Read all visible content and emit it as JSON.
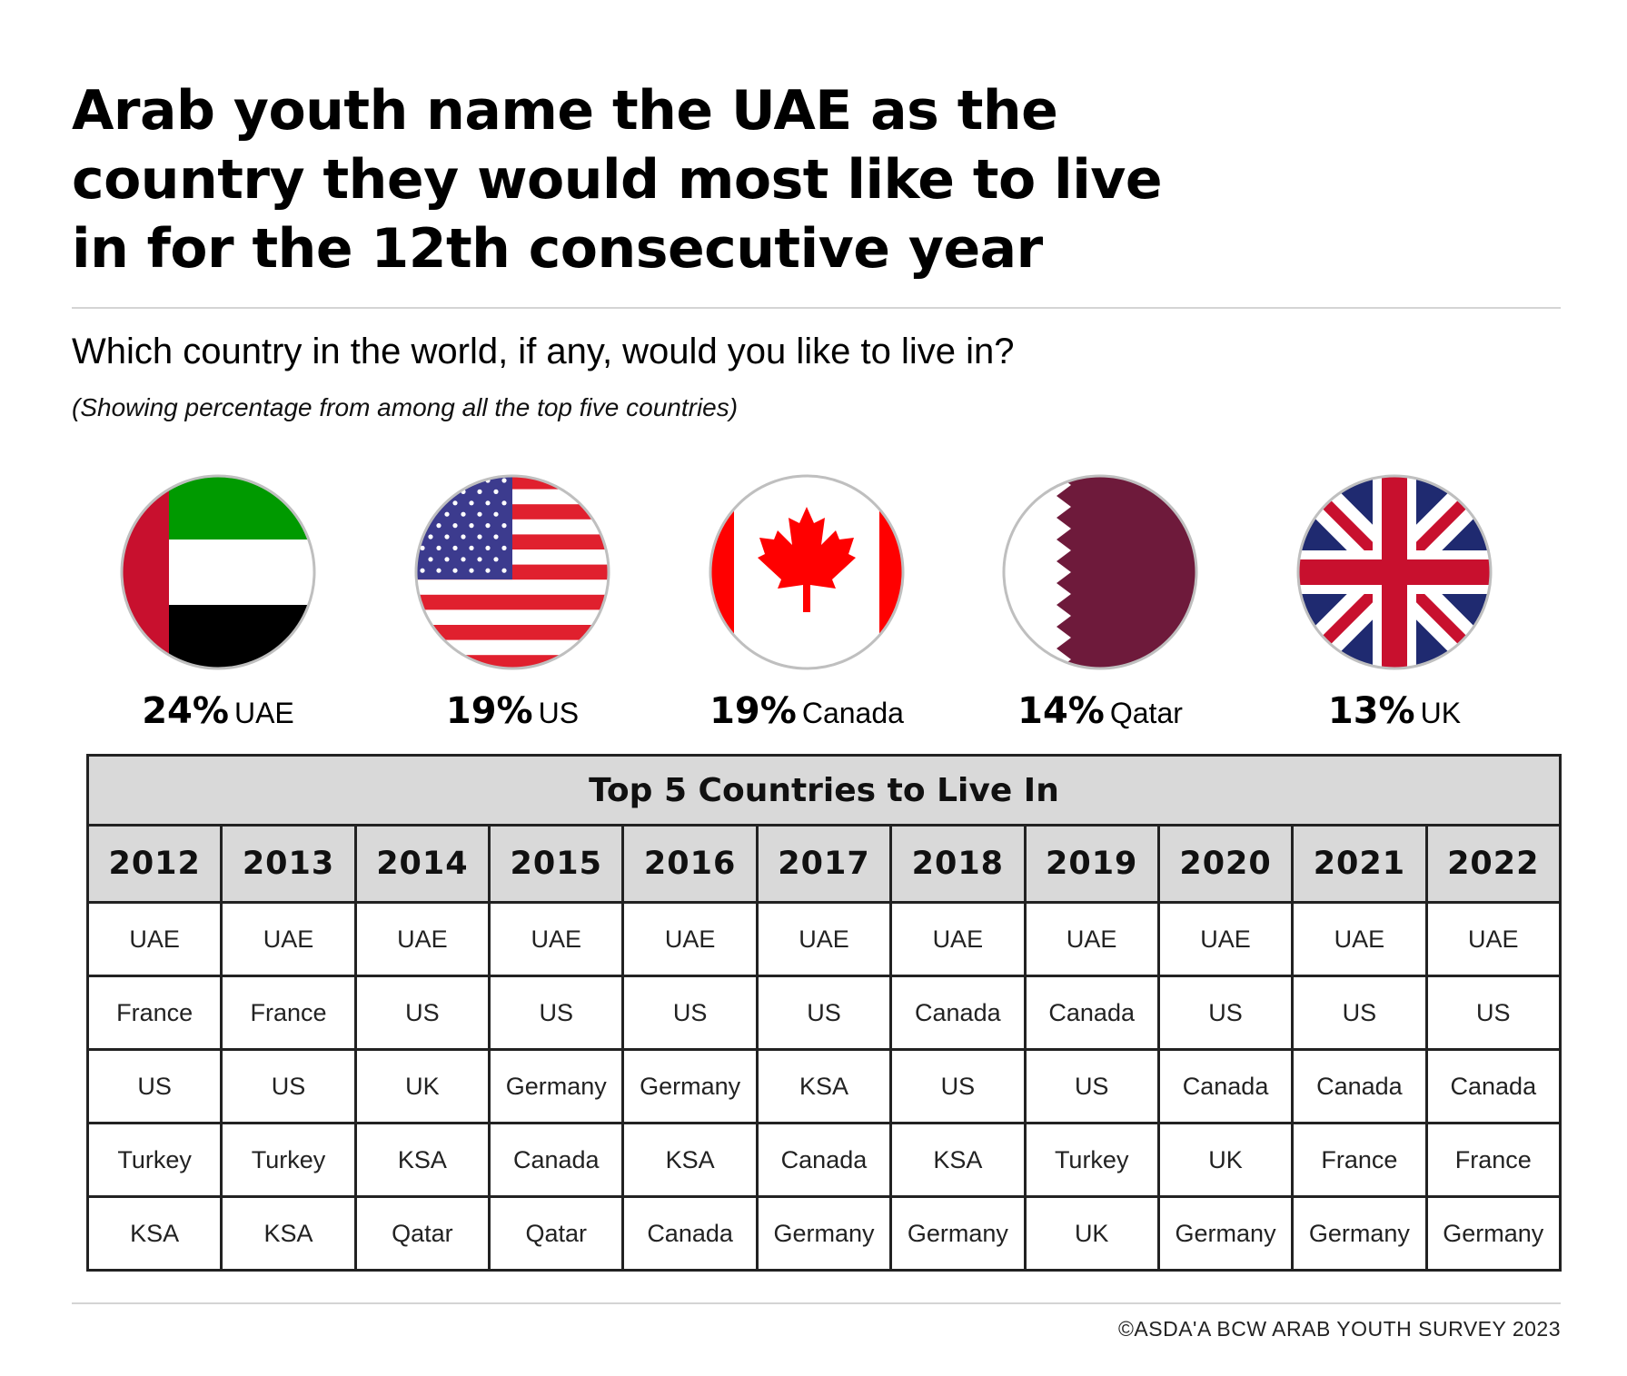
{
  "title_lines": [
    "Arab youth name the UAE as the",
    "country they would most like to live",
    "in for the 12th consecutive year"
  ],
  "question": "Which country in the world, if any, would you like to live in?",
  "note": "(Showing percentage from among all the top five countries)",
  "colors": {
    "uae_green": "#009a00",
    "uae_red": "#c8102e",
    "us_red": "#e0202e",
    "us_blue": "#3c3b8e",
    "canada_red": "#ff0000",
    "qatar_maroon": "#6e1a3b",
    "uk_blue": "#1f2a70",
    "uk_red": "#c8102e",
    "header_grey": "#d9d9d9"
  },
  "chart_data": [
    {
      "type": "bar",
      "categories": [
        "UAE",
        "US",
        "Canada",
        "Qatar",
        "UK"
      ],
      "values": [
        24,
        19,
        19,
        14,
        13
      ],
      "labels": [
        "24%",
        "19%",
        "19%",
        "14%",
        "13%"
      ],
      "flag_icons": [
        "uae-flag-icon",
        "us-flag-icon",
        "canada-flag-icon",
        "qatar-flag-icon",
        "uk-flag-icon"
      ]
    },
    {
      "type": "table",
      "title": "Top 5 Countries to Live In",
      "columns": [
        "2012",
        "2013",
        "2014",
        "2015",
        "2016",
        "2017",
        "2018",
        "2019",
        "2020",
        "2021",
        "2022"
      ],
      "rows": [
        [
          "UAE",
          "UAE",
          "UAE",
          "UAE",
          "UAE",
          "UAE",
          "UAE",
          "UAE",
          "UAE",
          "UAE",
          "UAE"
        ],
        [
          "France",
          "France",
          "US",
          "US",
          "US",
          "US",
          "Canada",
          "Canada",
          "US",
          "US",
          "US"
        ],
        [
          "US",
          "US",
          "UK",
          "Germany",
          "Germany",
          "KSA",
          "US",
          "US",
          "Canada",
          "Canada",
          "Canada"
        ],
        [
          "Turkey",
          "Turkey",
          "KSA",
          "Canada",
          "KSA",
          "Canada",
          "KSA",
          "Turkey",
          "UK",
          "France",
          "France"
        ],
        [
          "KSA",
          "KSA",
          "Qatar",
          "Qatar",
          "Canada",
          "Germany",
          "Germany",
          "UK",
          "Germany",
          "Germany",
          "Germany"
        ]
      ]
    }
  ],
  "footer": "©ASDA'A BCW ARAB YOUTH SURVEY 2023"
}
